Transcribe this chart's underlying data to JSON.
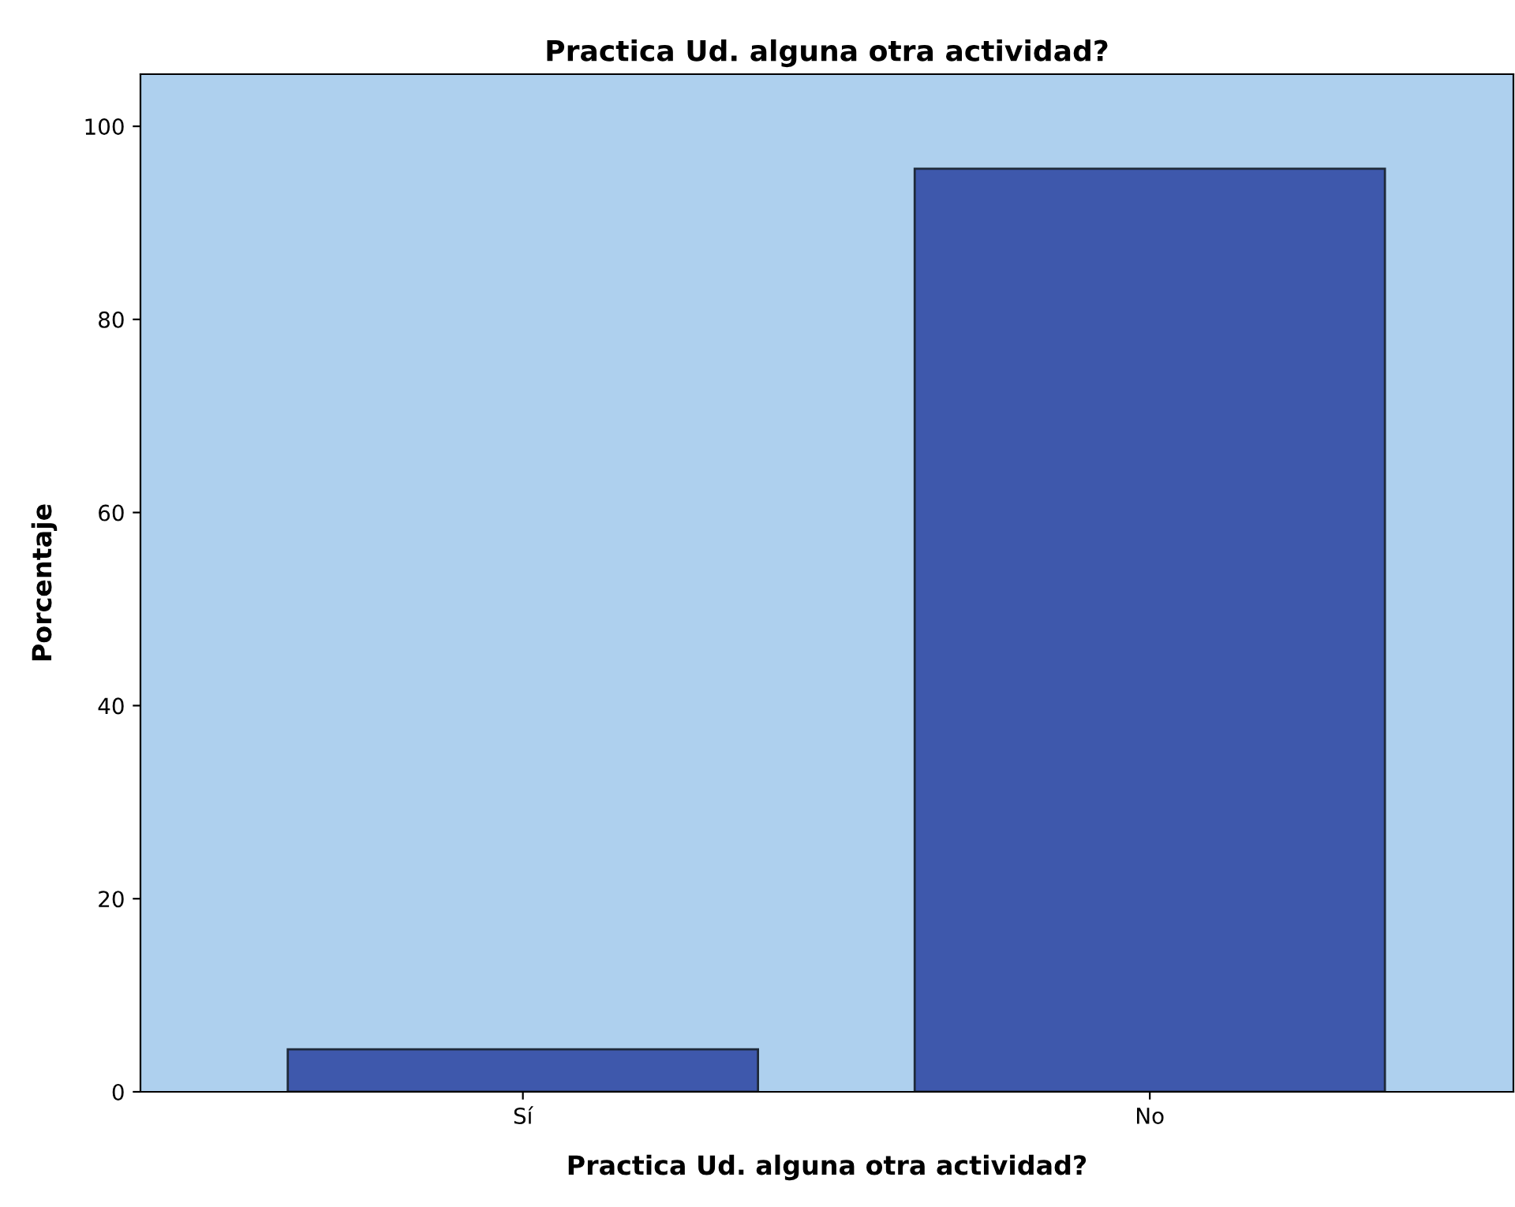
{
  "chart_data": {
    "type": "bar",
    "title": "Practica Ud. alguna otra actividad?",
    "xlabel": "Practica Ud. alguna otra actividad?",
    "ylabel": "Porcentaje",
    "categories": [
      "Sí",
      "No"
    ],
    "values": [
      4.4,
      95.6
    ],
    "color": "#3e58ac",
    "ylim": [
      0,
      105.4
    ],
    "yticks": [
      0,
      20,
      40,
      60,
      80,
      100
    ],
    "grid": false
  }
}
